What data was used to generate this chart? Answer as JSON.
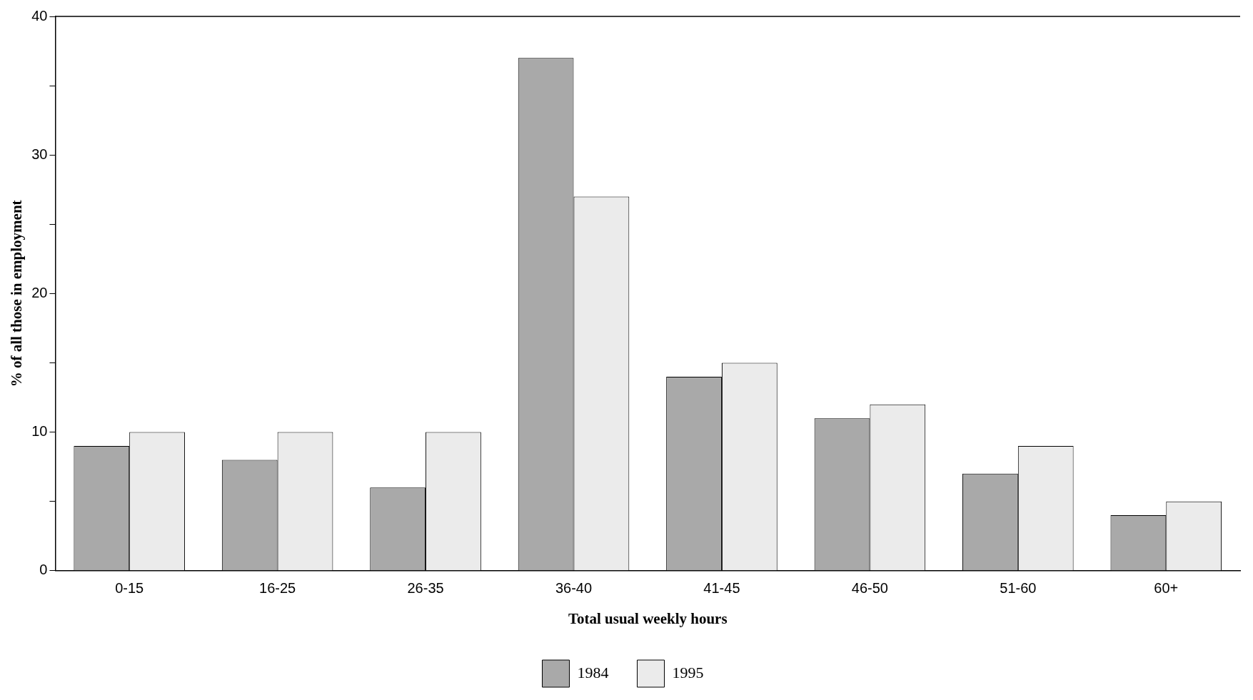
{
  "chart_data": {
    "type": "bar",
    "xlabel": "Total usual weekly hours",
    "ylabel": "% of all those in employment",
    "categories": [
      "0-15",
      "16-25",
      "26-35",
      "36-40",
      "41-45",
      "46-50",
      "51-60",
      "60+"
    ],
    "series": [
      {
        "name": "1984",
        "color": "#a9a9a9",
        "values": [
          9,
          8,
          6,
          37,
          14,
          11,
          7,
          4
        ]
      },
      {
        "name": "1995",
        "color": "#ebebeb",
        "values": [
          10,
          10,
          10,
          27,
          15,
          12,
          9,
          5
        ]
      }
    ],
    "ylim": [
      0,
      40
    ],
    "yticks": [
      0,
      {
        "value": 5,
        "label": null
      },
      10,
      {
        "value": 15,
        "label": null
      },
      20,
      {
        "value": 25,
        "label": null
      },
      30,
      {
        "value": 35,
        "label": null
      },
      40
    ],
    "grid": false,
    "legend": "bottom"
  }
}
